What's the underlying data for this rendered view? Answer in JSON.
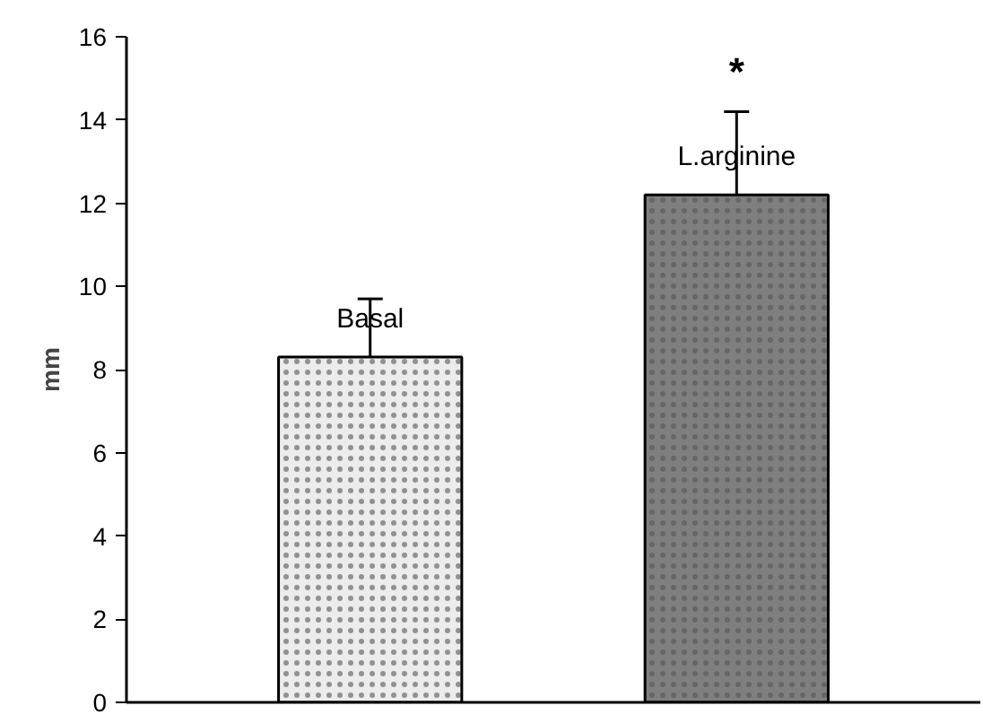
{
  "chart_data": {
    "type": "bar",
    "ylabel": "mm",
    "categories": [
      "Basal",
      "L.arginine"
    ],
    "values": [
      8.3,
      12.2
    ],
    "errors": [
      [
        6.9,
        9.7
      ],
      [
        10.1,
        14.2
      ]
    ],
    "colors": [
      "#ececec",
      "#7f7f7f"
    ],
    "ylim": [
      0,
      16
    ],
    "yticks": [
      0,
      2,
      4,
      6,
      8,
      10,
      12,
      14,
      16
    ],
    "tick_labels": "y",
    "grid": false,
    "annotations": [
      "*"
    ]
  }
}
